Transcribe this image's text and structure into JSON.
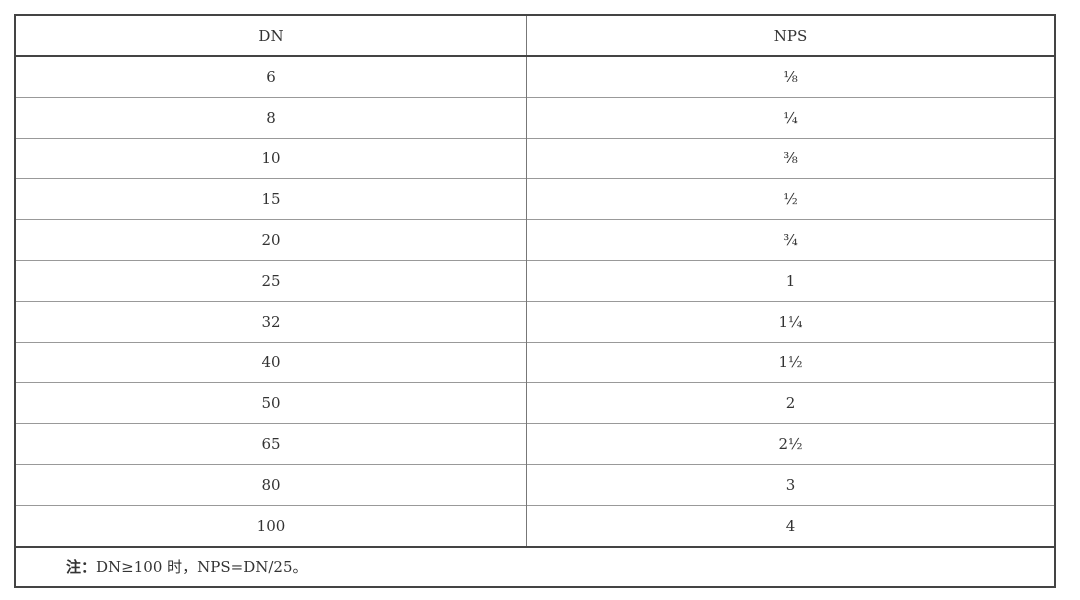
{
  "table": {
    "headers": [
      "DN",
      "NPS"
    ],
    "rows": [
      {
        "dn": "6",
        "nps": "⅛"
      },
      {
        "dn": "8",
        "nps": "¼"
      },
      {
        "dn": "10",
        "nps": "⅜"
      },
      {
        "dn": "15",
        "nps": "½"
      },
      {
        "dn": "20",
        "nps": "¾"
      },
      {
        "dn": "25",
        "nps": "1"
      },
      {
        "dn": "32",
        "nps": "1¼"
      },
      {
        "dn": "40",
        "nps": "1½"
      },
      {
        "dn": "50",
        "nps": "2"
      },
      {
        "dn": "65",
        "nps": "2½"
      },
      {
        "dn": "80",
        "nps": "3"
      },
      {
        "dn": "100",
        "nps": "4"
      }
    ],
    "note_label": "注：",
    "note_text": "DN≥100 时，NPS=DN/25。"
  }
}
